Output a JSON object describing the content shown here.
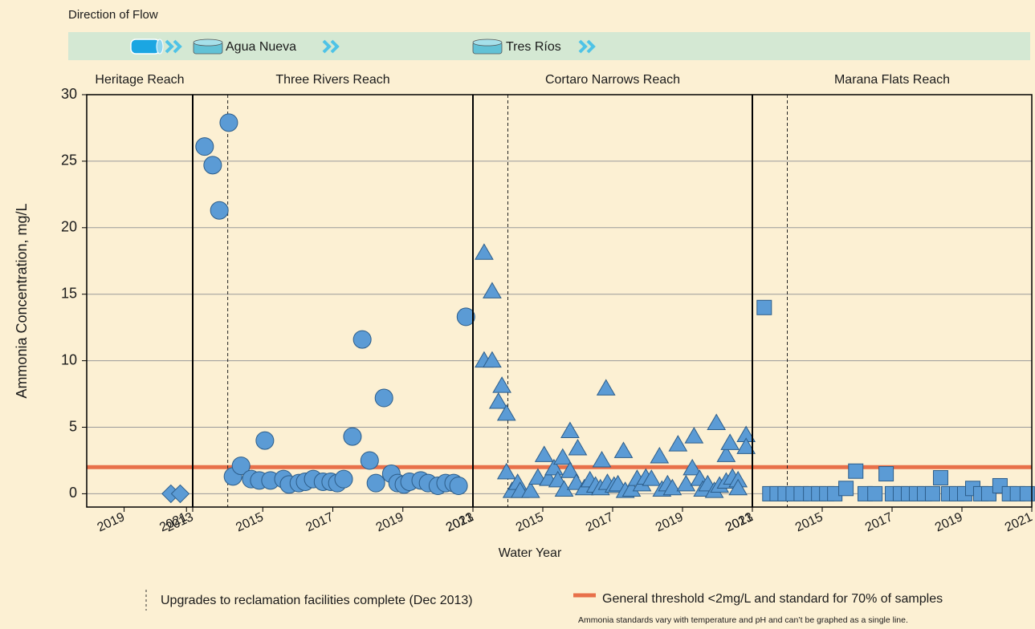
{
  "chart_data": {
    "type": "scatter",
    "flow_title": "Direction of Flow",
    "flow_labels": [
      "Agua Nueva",
      "Tres Ríos"
    ],
    "ylabel": "Ammonia Concentration, mg/L",
    "xlabel": "Water Year",
    "ylim": [
      -1,
      30
    ],
    "yticks": [
      0,
      5,
      10,
      15,
      20,
      25,
      30
    ],
    "grid": true,
    "threshold": {
      "value": 2,
      "color": "#e8704a",
      "label": "General threshold <2mg/L and standard for 70% of samples"
    },
    "upgrade_label": "Upgrades to reclamation facilities complete (Dec 2013)",
    "footnote": "Ammonia standards vary with temperature and pH and can’t be graphed as a single line.",
    "marker_color": "#5b9bd5",
    "panels": [
      {
        "title": "Heritage Reach",
        "marker": "diamond",
        "xlim": [
          2017.8,
          2021.2
        ],
        "xticks": [
          2019,
          2021
        ],
        "x": [
          2020.5,
          2020.8
        ],
        "values": [
          0,
          0
        ]
      },
      {
        "title": "Three Rivers Reach",
        "marker": "circle",
        "xlim": [
          2013,
          2021
        ],
        "xticks": [
          2013,
          2015,
          2017,
          2019,
          2021
        ],
        "upgrade_line": 2014,
        "x": [
          2013.34,
          2013.57,
          2013.76,
          2014.03,
          2014.15,
          2014.38,
          2014.67,
          2014.9,
          2015.06,
          2015.22,
          2015.59,
          2015.75,
          2016.03,
          2016.21,
          2016.44,
          2016.72,
          2016.94,
          2017.13,
          2017.31,
          2017.56,
          2017.84,
          2018.05,
          2018.23,
          2018.46,
          2018.67,
          2018.85,
          2019.03,
          2019.19,
          2019.51,
          2019.72,
          2020.0,
          2020.22,
          2020.45,
          2020.59,
          2020.8
        ],
        "values": [
          26.1,
          24.7,
          21.3,
          27.9,
          1.3,
          2.1,
          1.1,
          1.0,
          4.0,
          1.0,
          1.1,
          0.7,
          0.8,
          0.9,
          1.1,
          0.9,
          0.9,
          0.8,
          1.1,
          4.3,
          11.6,
          2.5,
          0.8,
          7.2,
          1.5,
          0.8,
          0.7,
          0.9,
          1.0,
          0.8,
          0.6,
          0.8,
          0.8,
          0.6,
          13.3
        ]
      },
      {
        "title": "Cortaro Narrows Reach",
        "marker": "triangle",
        "xlim": [
          2013,
          2021
        ],
        "xticks": [
          2013,
          2015,
          2017,
          2019,
          2021
        ],
        "upgrade_line": 2014,
        "x": [
          2013.32,
          2013.55,
          2013.32,
          2013.55,
          2013.83,
          2013.73,
          2013.96,
          2013.96,
          2014.12,
          2014.28,
          2014.35,
          2014.65,
          2014.86,
          2015.04,
          2015.16,
          2015.32,
          2015.43,
          2015.57,
          2015.61,
          2015.78,
          2015.78,
          2016.0,
          2015.96,
          2016.19,
          2016.35,
          2016.51,
          2016.65,
          2016.69,
          2016.81,
          2016.85,
          2017.04,
          2017.15,
          2017.31,
          2017.36,
          2017.54,
          2017.7,
          2017.84,
          2017.95,
          2018.11,
          2018.34,
          2018.41,
          2018.57,
          2018.71,
          2018.87,
          2019.1,
          2019.28,
          2019.33,
          2019.49,
          2019.58,
          2019.72,
          2019.91,
          2019.97,
          2020.06,
          2020.25,
          2020.25,
          2020.36,
          2020.43,
          2020.59,
          2020.59,
          2020.82,
          2020.82
        ],
        "values": [
          18.1,
          15.2,
          10.0,
          10.0,
          8.1,
          6.9,
          6.0,
          1.6,
          0.2,
          0.8,
          0.2,
          0.2,
          1.2,
          2.9,
          1.1,
          1.9,
          1.0,
          2.7,
          0.3,
          4.7,
          1.7,
          3.4,
          0.8,
          0.4,
          1.0,
          0.6,
          0.4,
          2.5,
          7.9,
          0.8,
          0.6,
          0.7,
          3.2,
          0.2,
          0.3,
          1.1,
          0.7,
          1.2,
          1.1,
          2.8,
          0.3,
          0.7,
          0.4,
          3.7,
          0.7,
          1.9,
          4.3,
          1.1,
          0.3,
          0.7,
          0.2,
          5.3,
          0.6,
          2.9,
          0.9,
          3.8,
          1.2,
          1.0,
          0.4,
          4.4,
          3.5
        ]
      },
      {
        "title": "Marana Flats Reach",
        "marker": "square",
        "xlim": [
          2013,
          2021
        ],
        "xticks": [
          2013,
          2015,
          2017,
          2019,
          2021
        ],
        "upgrade_line": 2014,
        "x": [
          2013.34,
          2013.5,
          2013.71,
          2013.94,
          2014.17,
          2014.4,
          2014.67,
          2014.9,
          2015.13,
          2015.36,
          2015.68,
          2015.96,
          2016.23,
          2016.51,
          2016.83,
          2017.01,
          2017.24,
          2017.47,
          2017.7,
          2017.93,
          2018.16,
          2018.39,
          2018.62,
          2018.85,
          2019.08,
          2019.31,
          2019.54,
          2019.77,
          2020.09,
          2020.36,
          2020.59,
          2020.87
        ],
        "values": [
          14.0,
          0,
          0,
          0,
          0,
          0,
          0,
          0,
          0,
          0,
          0.4,
          1.7,
          0,
          0,
          1.5,
          0,
          0,
          0,
          0,
          0,
          0,
          1.2,
          0,
          0,
          0,
          0.4,
          0,
          0,
          0.6,
          0,
          0,
          0
        ]
      }
    ]
  }
}
